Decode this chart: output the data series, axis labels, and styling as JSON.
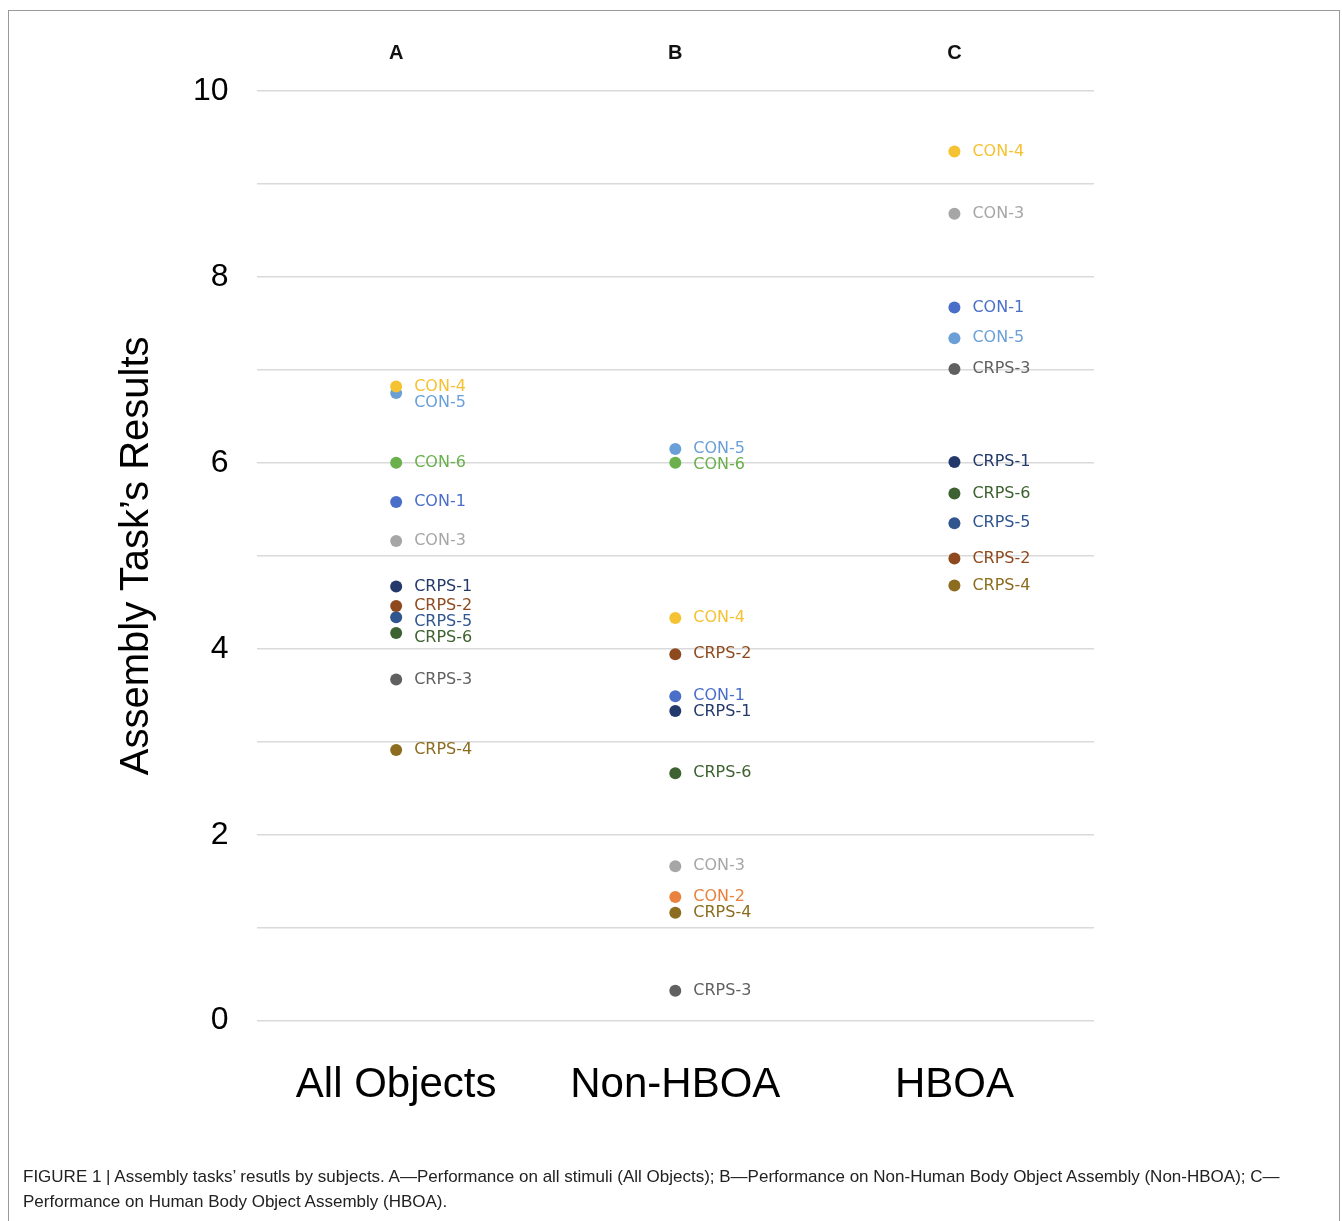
{
  "chart_data": {
    "type": "scatter",
    "ylabel": "Assembly Task’s Results",
    "categories": [
      "All Objects",
      "Non-HBOA",
      "HBOA"
    ],
    "series": [
      {
        "name": "CON-1",
        "color": "#4a6fc9",
        "values": [
          5.58,
          3.49,
          7.67
        ]
      },
      {
        "name": "CON-2",
        "color": "#e8823e",
        "values": [
          null,
          1.33,
          null
        ]
      },
      {
        "name": "CON-3",
        "color": "#a6a6a6",
        "values": [
          5.16,
          1.66,
          8.68
        ]
      },
      {
        "name": "CON-4",
        "color": "#f5c232",
        "values": [
          6.82,
          4.33,
          9.35
        ]
      },
      {
        "name": "CON-5",
        "color": "#6a9fd8",
        "values": [
          6.75,
          6.15,
          7.34
        ]
      },
      {
        "name": "CON-6",
        "color": "#6ab04c",
        "values": [
          6.0,
          6.0,
          null
        ]
      },
      {
        "name": "CRPS-1",
        "color": "#23386b",
        "values": [
          4.67,
          3.33,
          6.01
        ]
      },
      {
        "name": "CRPS-2",
        "color": "#8e4a1e",
        "values": [
          4.46,
          3.94,
          4.97
        ]
      },
      {
        "name": "CRPS-3",
        "color": "#606060",
        "values": [
          3.67,
          0.32,
          7.01
        ]
      },
      {
        "name": "CRPS-4",
        "color": "#8c6d1f",
        "values": [
          2.91,
          1.16,
          4.68
        ]
      },
      {
        "name": "CRPS-5",
        "color": "#30558f",
        "values": [
          4.34,
          null,
          5.35
        ]
      },
      {
        "name": "CRPS-6",
        "color": "#3d6130",
        "values": [
          4.17,
          2.66,
          5.67
        ]
      }
    ],
    "ylim": [
      0,
      10
    ],
    "yticks": [
      0,
      {
        "value": 1,
        "label": null
      },
      2,
      {
        "value": 3,
        "label": null
      },
      4,
      {
        "value": 5,
        "label": null
      },
      6,
      {
        "value": 7,
        "label": null
      },
      8,
      {
        "value": 9,
        "label": null
      },
      10
    ],
    "grid": "y",
    "marker": "circle",
    "annotations": [
      "A",
      "B",
      "C",
      "FIGURE 1 | Assembly tasks’ resutls by subjects. A—Performance on all stimuli (All Objects); B—Performance on Non-Human Body Object Assembly (Non-HBOA); C—Performance on Human Body Object Assembly (HBOA)."
    ]
  }
}
